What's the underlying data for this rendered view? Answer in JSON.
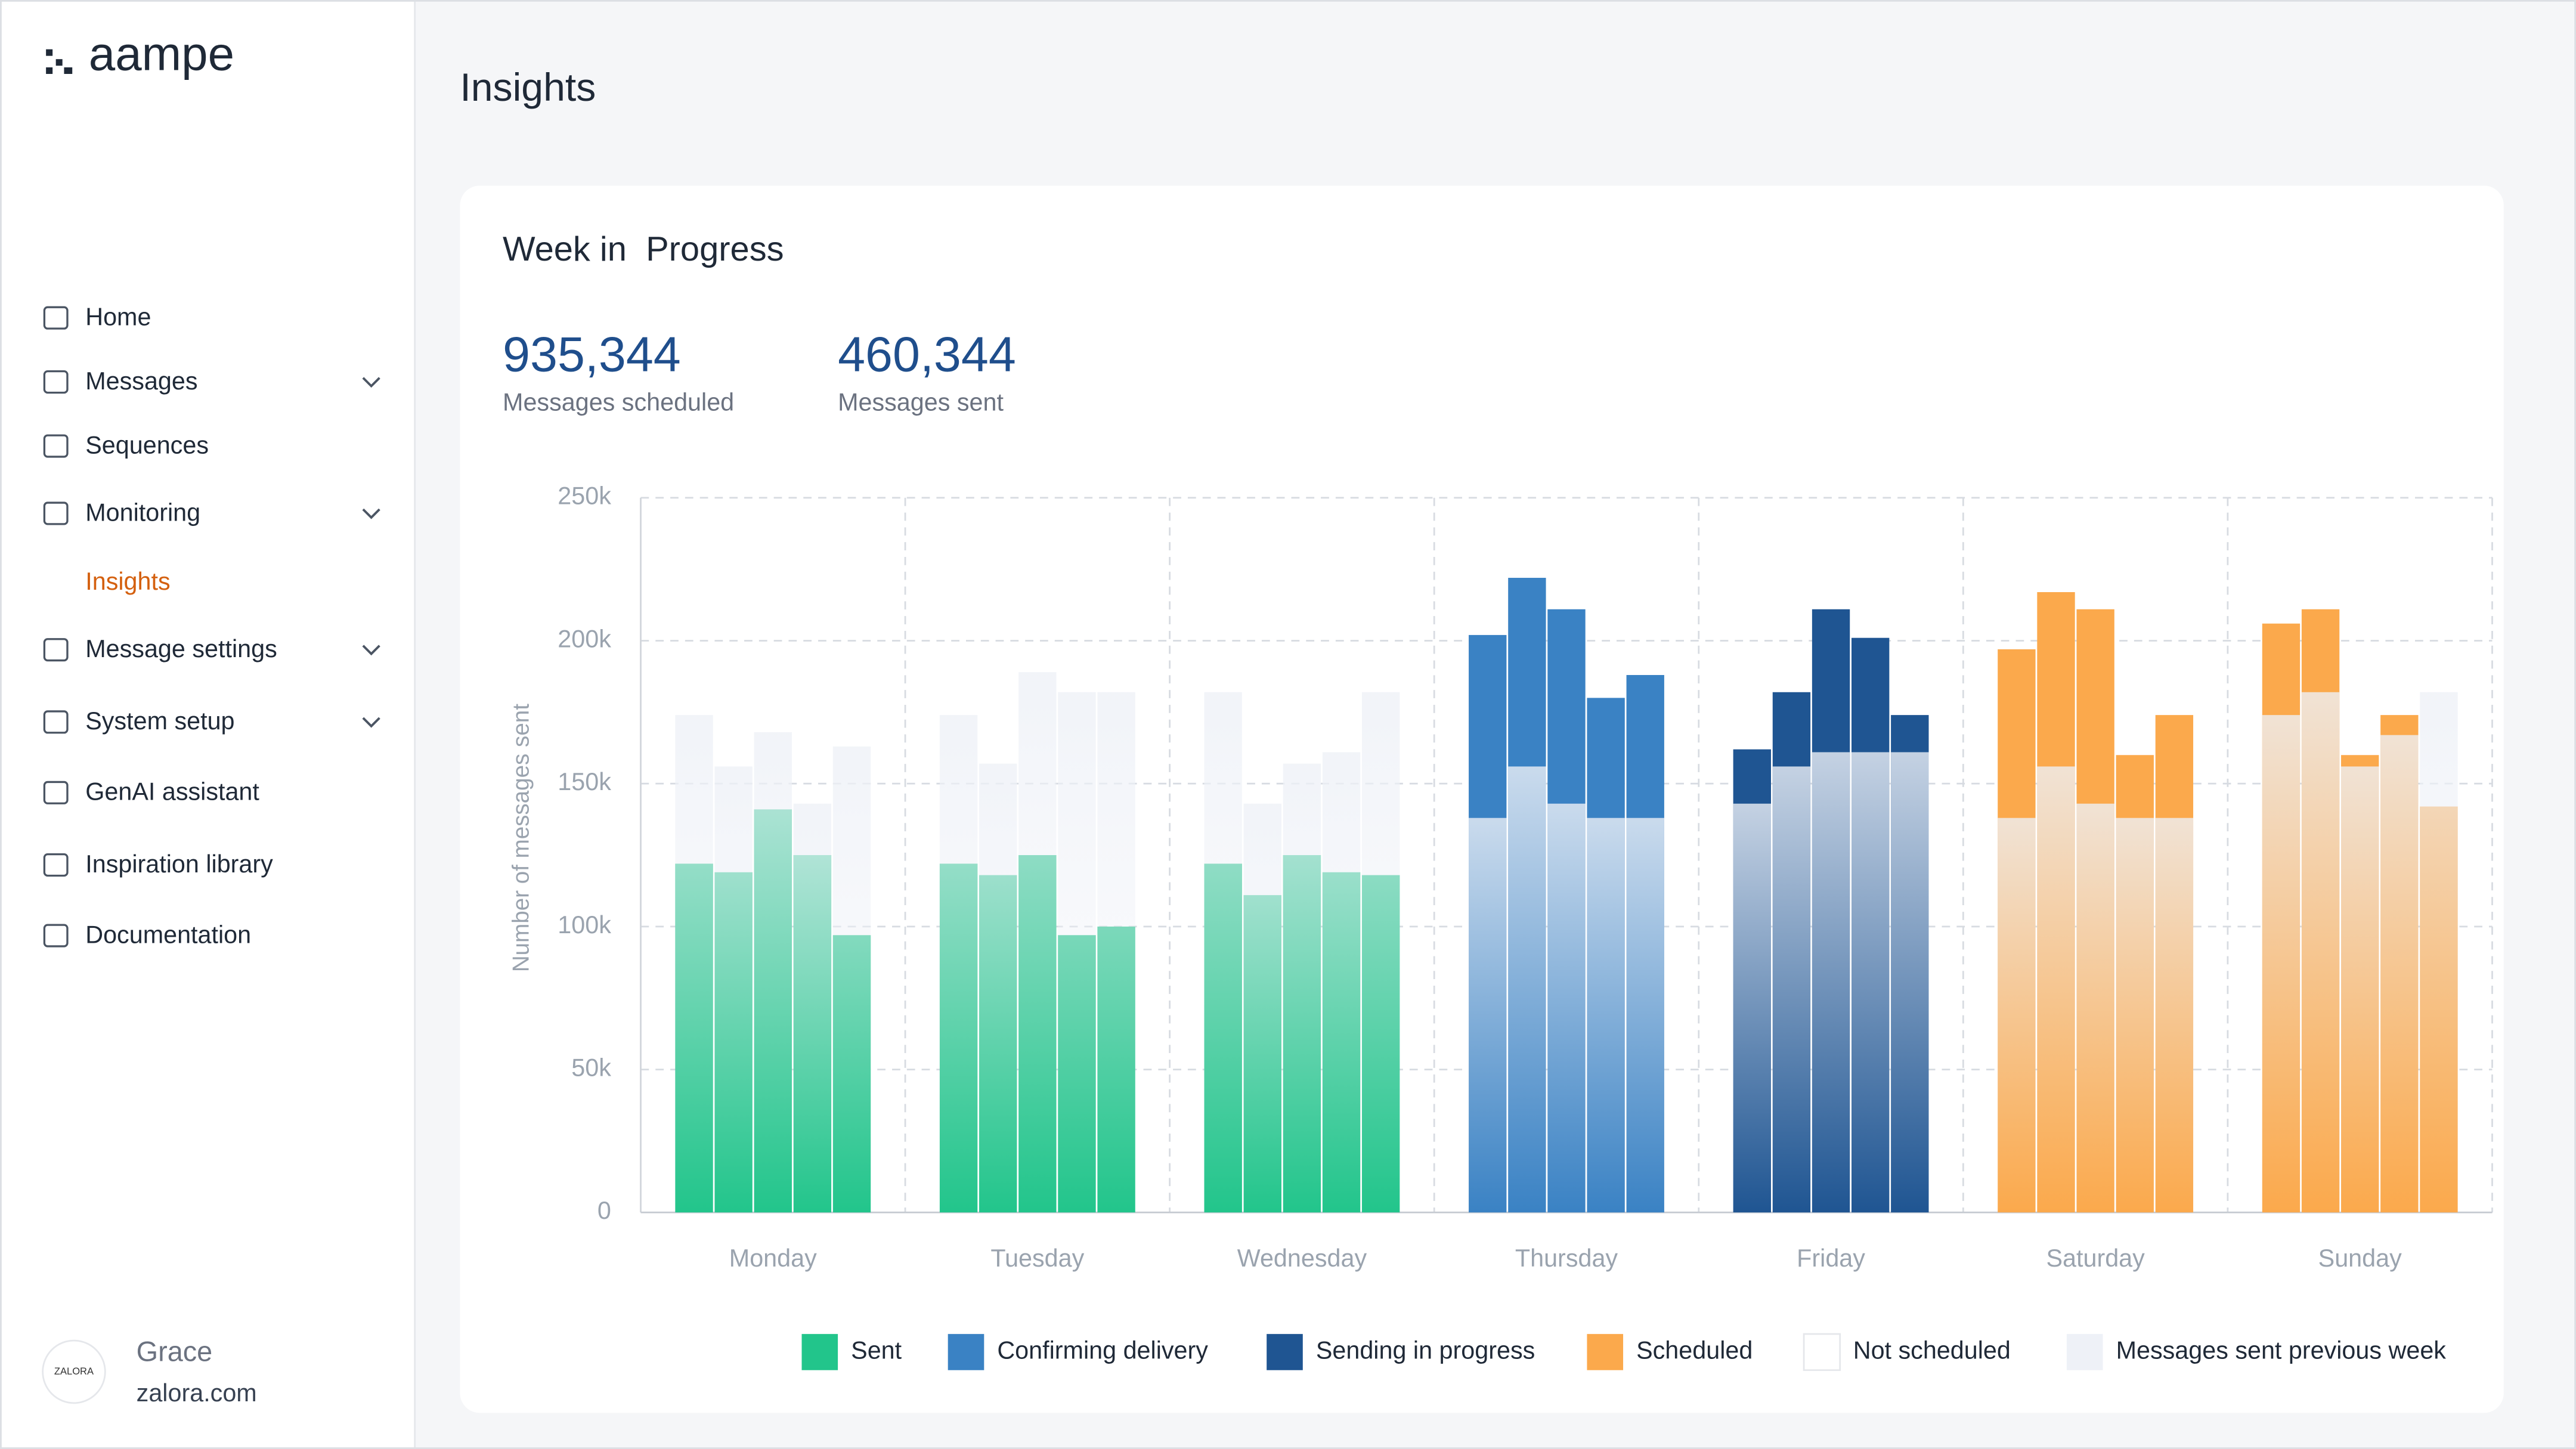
{
  "sidebar": {
    "logo": "aampe",
    "nav": [
      {
        "label": "Home"
      },
      {
        "label": "Messages"
      },
      {
        "label": "Sequences"
      },
      {
        "label": "Monitoring"
      },
      {
        "label": "Insights"
      },
      {
        "label": "Message settings"
      },
      {
        "label": "System setup"
      },
      {
        "label": "GenAI assistant"
      },
      {
        "label": "Inspiration library"
      },
      {
        "label": "Documentation"
      }
    ],
    "user": {
      "avatar": "ZALORA",
      "name": "Grace",
      "org": "zalora.com"
    }
  },
  "page": {
    "title": "Insights",
    "card_title": "Week in  Progress"
  },
  "stats": [
    {
      "value": "935,344",
      "label": "Messages scheduled"
    },
    {
      "value": "460,344",
      "label": "Messages sent"
    }
  ],
  "chart_data": {
    "type": "bar",
    "categories": [
      "Monday",
      "Tuesday",
      "Wednesday",
      "Thursday",
      "Friday",
      "Saturday",
      "Sunday"
    ],
    "y_label": "Number of messages sent",
    "ylim": [
      0,
      250000
    ],
    "yticks": [
      0,
      {
        "value": 50000,
        "label": "50k"
      },
      {
        "value": 100000,
        "label": "100k"
      },
      {
        "value": 150000,
        "label": "150k"
      },
      {
        "value": 200000,
        "label": "200k"
      },
      {
        "value": 250000,
        "label": "250k"
      }
    ],
    "grid": true,
    "series": [
      {
        "name": "Sent",
        "color": "#22c58b",
        "values": [
          [
            122000,
            119000,
            141000,
            125000,
            97000
          ],
          [
            122000,
            118000,
            125000,
            97000,
            100000
          ],
          [
            122000,
            111000,
            125000,
            119000,
            118000
          ],
          null,
          null,
          null,
          null
        ]
      },
      {
        "name": "Confirming delivery",
        "color": "#3a82c4",
        "values": [
          null,
          null,
          null,
          [
            202000,
            222000,
            211000,
            180000,
            188000
          ],
          null,
          null,
          null
        ]
      },
      {
        "name": "Sending in progress",
        "color": "#1f5592",
        "values": [
          null,
          null,
          null,
          null,
          [
            162000,
            182000,
            211000,
            201000,
            174000
          ],
          null,
          null
        ]
      },
      {
        "name": "Scheduled",
        "color": "#fba94c",
        "values": [
          null,
          null,
          null,
          null,
          null,
          [
            197000,
            217000,
            211000,
            160000,
            174000
          ],
          [
            206000,
            211000,
            160000,
            174000,
            142000
          ]
        ]
      },
      {
        "name": "Not scheduled",
        "color": "#ffffff"
      },
      {
        "name": "Messages sent previous week",
        "color": "#eef1f7",
        "values": [
          [
            174000,
            156000,
            168000,
            143000,
            163000
          ],
          [
            174000,
            157000,
            189000,
            182000,
            182000
          ],
          [
            182000,
            143000,
            157000,
            161000,
            182000
          ],
          [
            138000,
            156000,
            143000,
            138000,
            138000
          ],
          [
            143000,
            156000,
            161000,
            161000,
            161000
          ],
          [
            138000,
            156000,
            143000,
            138000,
            138000
          ],
          [
            174000,
            182000,
            156000,
            167000,
            182000
          ]
        ]
      }
    ]
  }
}
